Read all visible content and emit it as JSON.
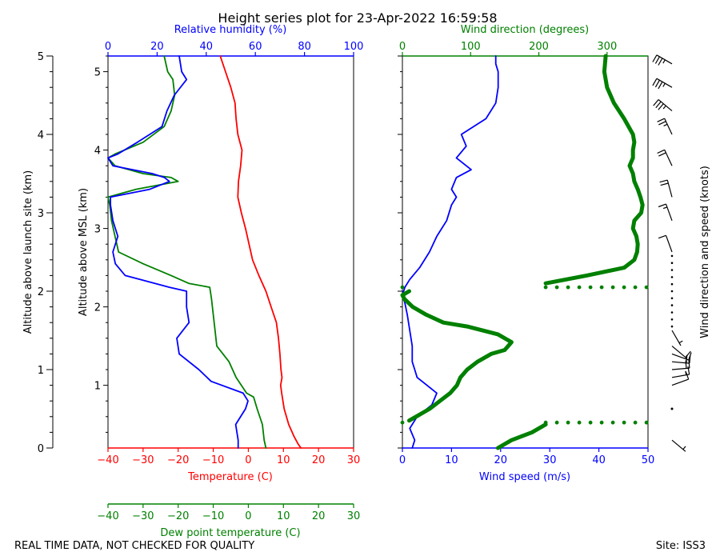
{
  "chart_data": {
    "type": "line",
    "title": "Height series plot for 23-Apr-2022 16:59:58",
    "footer_left": "REAL TIME DATA, NOT CHECKED FOR QUALITY",
    "footer_right": "Site: ISS3",
    "colors": {
      "temp": "#ff0000",
      "rh": "#0000ff",
      "dew": "#008000",
      "wspd": "#0000ff",
      "wdir": "#008000",
      "barb": "#000000"
    },
    "left_panel": {
      "xlabel_temp": "Temperature (C)",
      "xlabel_dew": "Dew point temperature (C)",
      "xlabel_rh": "Relative humidity (%)",
      "ylabel_msl": "Altitude above MSL (km)",
      "ylabel_agl": "Altitude above launch site (km)",
      "temp_ticks": [
        "−40",
        "−30",
        "−20",
        "−10",
        "0",
        "10",
        "20",
        "30"
      ],
      "dew_ticks": [
        "−40",
        "−30",
        "−20",
        "−10",
        "0",
        "10",
        "20",
        "30"
      ],
      "rh_ticks": [
        "0",
        "20",
        "40",
        "60",
        "80",
        "100"
      ],
      "msl_ticks": [
        "1",
        "2",
        "3",
        "4",
        "5"
      ],
      "agl_ticks": [
        "0",
        "1",
        "2",
        "3",
        "4",
        "5"
      ],
      "xlim_temp": [
        -40,
        30
      ],
      "xlim_rh": [
        0,
        100
      ],
      "ylim_agl": [
        0,
        5
      ],
      "msl_offset_km": 0.2,
      "temperature": {
        "name": "Temperature",
        "alt_agl": [
          0,
          0.05,
          0.15,
          0.3,
          0.5,
          0.7,
          0.8,
          0.9,
          1.0,
          1.2,
          1.4,
          1.6,
          1.8,
          2.0,
          2.2,
          2.4,
          2.6,
          2.8,
          3.0,
          3.2,
          3.4,
          3.6,
          3.8,
          4.0,
          4.2,
          4.4,
          4.6,
          4.8,
          5.0
        ],
        "values": [
          15,
          14.2,
          13,
          11.5,
          10.2,
          9.5,
          9.2,
          9.6,
          9.3,
          9.0,
          8.6,
          8.0,
          6.5,
          5.0,
          3.0,
          1.2,
          0.2,
          -0.8,
          -2.0,
          -3.0,
          -2.8,
          -2.2,
          -1.8,
          -3.0,
          -3.5,
          -3.8,
          -5.0,
          -6.5,
          -8.0
        ]
      },
      "dewpoint": {
        "name": "Dew point temperature",
        "alt_agl": [
          0,
          0.1,
          0.3,
          0.5,
          0.65,
          0.7,
          0.9,
          1.1,
          1.3,
          1.5,
          1.7,
          1.9,
          2.05,
          2.1,
          2.2,
          2.35,
          2.5,
          2.7,
          2.9,
          3.1,
          3.2,
          3.3,
          3.4,
          3.45,
          3.5,
          3.6,
          3.7,
          3.75,
          3.9,
          4.1,
          4.3,
          4.5,
          4.7,
          4.8,
          5.0
        ],
        "values": [
          5,
          4.5,
          4.0,
          2.5,
          1.5,
          -0.5,
          -3.5,
          -5.5,
          -9.0,
          -9.5,
          -10.0,
          -10.5,
          -11.0,
          -17.0,
          -22.0,
          -30.0,
          -37.0,
          -38.0,
          -39.0,
          -39.5,
          -40.0,
          -32.0,
          -20.0,
          -22.0,
          -30.0,
          -38.0,
          -40.0,
          -38.0,
          -30.0,
          -24.0,
          -22.0,
          -21.0,
          -21.5,
          -23.0,
          -24.0
        ]
      },
      "relative_humidity": {
        "name": "Relative humidity",
        "alt_agl": [
          0,
          0.1,
          0.3,
          0.5,
          0.6,
          0.7,
          0.85,
          1.0,
          1.2,
          1.4,
          1.6,
          1.8,
          2.0,
          2.05,
          2.15,
          2.2,
          2.35,
          2.5,
          2.7,
          2.9,
          3.1,
          3.2,
          3.3,
          3.4,
          3.45,
          3.5,
          3.6,
          3.7,
          3.75,
          3.9,
          4.1,
          4.3,
          4.5,
          4.7,
          4.8,
          5.0
        ],
        "values": [
          53,
          53,
          52,
          56,
          57,
          55,
          42,
          37,
          29,
          28,
          33,
          32,
          32,
          25,
          13,
          7,
          3,
          2,
          4,
          2,
          1,
          1,
          17,
          25,
          23,
          18,
          2,
          0,
          4,
          12,
          22,
          24,
          27,
          32,
          30,
          29
        ]
      }
    },
    "right_panel": {
      "xlabel_wspd": "Wind speed (m/s)",
      "xlabel_wdir": "Wind direction (degrees)",
      "barb_label": "Wind direction and speed (knots)",
      "wspd_ticks": [
        "0",
        "10",
        "20",
        "30",
        "40",
        "50"
      ],
      "wdir_ticks": [
        "0",
        "100",
        "200",
        "300"
      ],
      "xlim_wspd": [
        0,
        50
      ],
      "xlim_wdir": [
        0,
        360
      ],
      "wind_speed": {
        "name": "Wind speed",
        "alt_agl": [
          0,
          0.1,
          0.25,
          0.4,
          0.55,
          0.7,
          0.8,
          0.9,
          1.0,
          1.1,
          1.3,
          1.5,
          1.7,
          1.85,
          1.95,
          2.05,
          2.15,
          2.3,
          2.5,
          2.7,
          2.9,
          3.1,
          3.2,
          3.3,
          3.45,
          3.55,
          3.7,
          3.85,
          4.0,
          4.2,
          4.4,
          4.6,
          4.8,
          4.9,
          5.0
        ],
        "values": [
          2,
          2.5,
          1.5,
          3,
          6,
          7,
          5,
          3,
          2.5,
          2,
          2,
          1.5,
          1,
          0.5,
          0,
          0.5,
          1.5,
          3.5,
          5.5,
          7,
          9,
          10,
          11,
          10,
          11,
          14,
          11,
          13,
          12,
          17,
          19,
          19.5,
          19.5,
          19,
          19
        ]
      },
      "wind_direction": {
        "name": "Wind direction",
        "alt_agl": [
          0,
          0.1,
          0.2,
          0.3,
          0.35,
          0.4,
          0.5,
          0.6,
          0.7,
          0.8,
          0.9,
          1.0,
          1.1,
          1.2,
          1.25,
          1.35,
          1.45,
          1.55,
          1.6,
          1.7,
          1.8,
          1.9,
          1.95,
          2.0,
          2.1,
          2.2,
          2.3,
          2.4,
          2.5,
          2.6,
          2.7,
          2.8,
          2.9,
          3.0,
          3.1,
          3.2,
          3.3,
          3.4,
          3.5,
          3.6,
          3.7,
          3.8,
          3.9,
          4.0,
          4.2,
          4.4,
          4.6,
          4.8,
          5.0
        ],
        "values": [
          140,
          160,
          190,
          210,
          10,
          20,
          40,
          55,
          70,
          80,
          85,
          95,
          110,
          130,
          150,
          160,
          140,
          95,
          60,
          35,
          15,
          3,
          0,
          10,
          210,
          270,
          325,
          340,
          344,
          345,
          343,
          338,
          340,
          350,
          352,
          349,
          345,
          340,
          338,
          333,
          338,
          338,
          340,
          338,
          325,
          310,
          300,
          296,
          298
        ]
      },
      "barbs": {
        "alt_agl": [
          0.1,
          0.5,
          0.8,
          0.9,
          1.0,
          1.1,
          1.2,
          1.3,
          1.5,
          2.5,
          2.9,
          3.2,
          3.6,
          4.0,
          4.3,
          4.6,
          4.9
        ],
        "speed_kt": [
          5,
          0,
          10,
          15,
          20,
          20,
          15,
          10,
          5,
          10,
          15,
          20,
          20,
          25,
          35,
          35,
          35
        ],
        "direction": [
          130,
          0,
          70,
          80,
          85,
          95,
          110,
          130,
          150,
          340,
          340,
          345,
          335,
          335,
          310,
          300,
          300
        ]
      }
    }
  }
}
